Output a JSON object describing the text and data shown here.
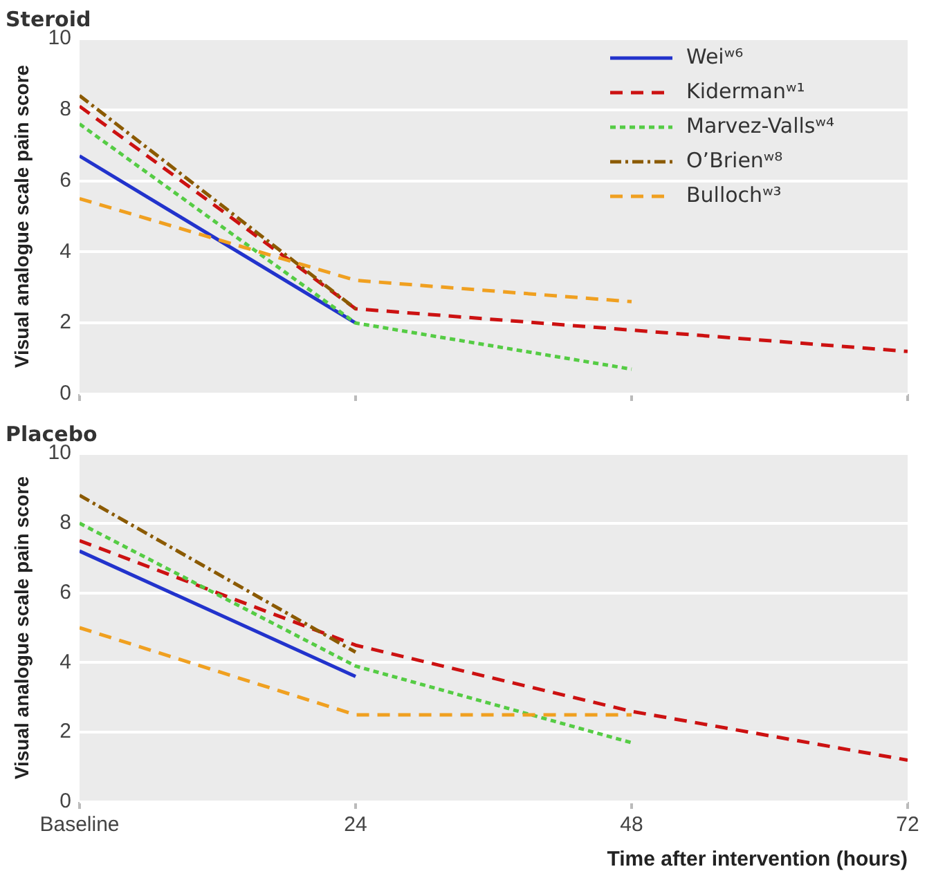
{
  "chart_data": [
    {
      "type": "line",
      "title": "Steroid",
      "ylabel": "Visual analogue scale pain score",
      "xlim": [
        0,
        72
      ],
      "xticks": [
        {
          "value": 0,
          "label": null
        },
        {
          "value": 24,
          "label": null
        },
        {
          "value": 48,
          "label": null
        },
        {
          "value": 72,
          "label": null
        }
      ],
      "ylim": [
        0,
        10
      ],
      "yticks": [
        0,
        2,
        4,
        6,
        8,
        10
      ],
      "tick_labels": "y",
      "grid": "y",
      "legend": "top right",
      "series": [
        {
          "name": "Weiʷ⁶",
          "color": "#2233cc",
          "line_style": "solid",
          "x": [
            0,
            24
          ],
          "values": [
            6.7,
            2.0
          ]
        },
        {
          "name": "Kidermanʷ¹",
          "color": "#cc1111",
          "line_style": "dashed",
          "x": [
            0,
            24,
            48,
            72
          ],
          "values": [
            8.1,
            2.4,
            1.8,
            1.2
          ]
        },
        {
          "name": "Marvez-Vallsʷ⁴",
          "color": "#55cc44",
          "line_style": "dotted",
          "x": [
            0,
            24,
            48
          ],
          "values": [
            7.6,
            2.0,
            0.7
          ]
        },
        {
          "name": "O’Brienʷ⁸",
          "color": "#8b5a00",
          "line_style": "dashdot",
          "x": [
            0,
            24
          ],
          "values": [
            8.4,
            2.4
          ]
        },
        {
          "name": "Bullochʷ³",
          "color": "#f0a020",
          "line_style": "dashed",
          "x": [
            0,
            24,
            48
          ],
          "values": [
            5.5,
            3.2,
            2.6
          ]
        }
      ]
    },
    {
      "type": "line",
      "title": "Placebo",
      "ylabel": "Visual analogue scale pain score",
      "xlabel": "Time after intervention (hours)",
      "xlim": [
        0,
        72
      ],
      "xticks": [
        {
          "value": 0,
          "label": "Baseline"
        },
        24,
        48,
        72
      ],
      "ylim": [
        0,
        10
      ],
      "yticks": [
        0,
        2,
        4,
        6,
        8,
        10
      ],
      "grid": "y",
      "series": [
        {
          "color": "#2233cc",
          "line_style": "solid",
          "x": [
            0,
            24
          ],
          "values": [
            7.2,
            3.6
          ]
        },
        {
          "color": "#cc1111",
          "line_style": "dashed",
          "x": [
            0,
            24,
            48,
            72
          ],
          "values": [
            7.5,
            4.5,
            2.6,
            1.2
          ]
        },
        {
          "color": "#55cc44",
          "line_style": "dotted",
          "x": [
            0,
            24,
            48
          ],
          "values": [
            8.0,
            3.9,
            1.7
          ]
        },
        {
          "color": "#8b5a00",
          "line_style": "dashdot",
          "x": [
            0,
            24
          ],
          "values": [
            8.8,
            4.3
          ]
        },
        {
          "color": "#f0a020",
          "line_style": "dashed",
          "x": [
            0,
            24,
            48
          ],
          "values": [
            5.0,
            2.5,
            2.5
          ]
        }
      ]
    }
  ]
}
